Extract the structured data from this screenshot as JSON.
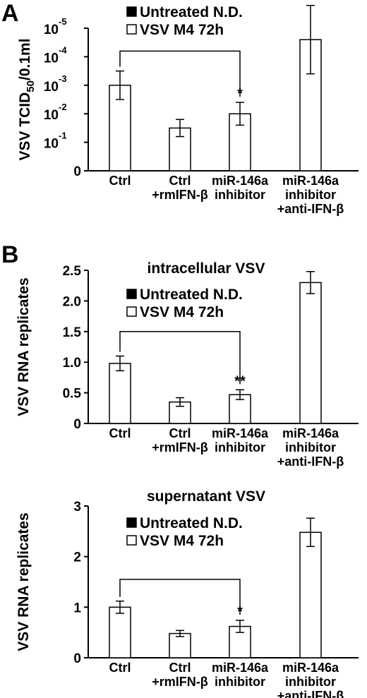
{
  "panel_labels": {
    "a": "A",
    "b": "B"
  },
  "chart_data": [
    {
      "type": "bar",
      "panel": "A",
      "title": "",
      "ylabel": "VSV TCID50/0.1ml",
      "ylabel_parts": {
        "main": "VSV TCID",
        "sub": "50",
        "tail": "/0.1ml"
      },
      "yscale": "log",
      "ylim": [
        0,
        5
      ],
      "yticks": [
        {
          "value": 0,
          "base": "0",
          "exp": ""
        },
        {
          "value": 1,
          "base": "10",
          "exp": "-1"
        },
        {
          "value": 2,
          "base": "10",
          "exp": "-2"
        },
        {
          "value": 3,
          "base": "10",
          "exp": "-3"
        },
        {
          "value": 4,
          "base": "10",
          "exp": "-4"
        },
        {
          "value": 5,
          "base": "10",
          "exp": "-5"
        }
      ],
      "categories": [
        [
          "Ctrl"
        ],
        [
          "Ctrl",
          "+rmIFN-β"
        ],
        [
          "miR-146a",
          "inhibitor"
        ],
        [
          "miR-146a",
          "inhibitor",
          "+anti-IFN-β"
        ]
      ],
      "legend": [
        "Untreated N.D.",
        "VSV M4 72h"
      ],
      "series": [
        {
          "name": "Untreated N.D.",
          "values": [
            0,
            0,
            0,
            0
          ]
        },
        {
          "name": "VSV M4 72h",
          "values": [
            3.0,
            1.5,
            2.0,
            4.6
          ],
          "errors": [
            0.5,
            0.3,
            0.4,
            1.2
          ]
        }
      ],
      "comparison": {
        "from": 0,
        "to": 2,
        "mark": "*"
      }
    },
    {
      "type": "bar",
      "panel": "B",
      "title": "intracellular VSV",
      "ylabel": "VSV RNA replicates",
      "ylim": [
        0,
        2.5
      ],
      "yticks": [
        {
          "value": 0,
          "label": "0"
        },
        {
          "value": 0.5,
          "label": "0.5"
        },
        {
          "value": 1.0,
          "label": "1.0"
        },
        {
          "value": 1.5,
          "label": "1.5"
        },
        {
          "value": 2.0,
          "label": "2.0"
        },
        {
          "value": 2.5,
          "label": "2.5"
        }
      ],
      "categories": [
        [
          "Ctrl"
        ],
        [
          "Ctrl",
          "+rmIFN-β"
        ],
        [
          "miR-146a",
          "inhibitor"
        ],
        [
          "miR-146a",
          "inhibitor",
          "+anti-IFN-β"
        ]
      ],
      "legend": [
        "Untreated N.D.",
        "VSV M4 72h"
      ],
      "series": [
        {
          "name": "Untreated N.D.",
          "values": [
            0,
            0,
            0,
            0
          ]
        },
        {
          "name": "VSV M4 72h",
          "values": [
            0.98,
            0.35,
            0.47,
            2.3
          ],
          "errors": [
            0.12,
            0.07,
            0.08,
            0.18
          ]
        }
      ],
      "comparison": {
        "from": 0,
        "to": 2,
        "mark": "**"
      }
    },
    {
      "type": "bar",
      "panel": "B",
      "title": "supernatant VSV",
      "ylabel": "VSV RNA replicates",
      "ylim": [
        0,
        3
      ],
      "yticks": [
        {
          "value": 0,
          "label": "0"
        },
        {
          "value": 1,
          "label": "1"
        },
        {
          "value": 2,
          "label": "2"
        },
        {
          "value": 3,
          "label": "3"
        }
      ],
      "categories": [
        [
          "Ctrl"
        ],
        [
          "Ctrl",
          "+rmIFN-β"
        ],
        [
          "miR-146a",
          "inhibitor"
        ],
        [
          "miR-146a",
          "inhibitor",
          "+anti-IFN-β"
        ]
      ],
      "legend": [
        "Untreated N.D.",
        "VSV M4 72h"
      ],
      "series": [
        {
          "name": "Untreated N.D.",
          "values": [
            0,
            0,
            0,
            0
          ]
        },
        {
          "name": "VSV M4 72h",
          "values": [
            1.0,
            0.48,
            0.62,
            2.48
          ],
          "errors": [
            0.12,
            0.06,
            0.12,
            0.28
          ]
        }
      ],
      "comparison": {
        "from": 0,
        "to": 2,
        "mark": "*"
      }
    }
  ]
}
